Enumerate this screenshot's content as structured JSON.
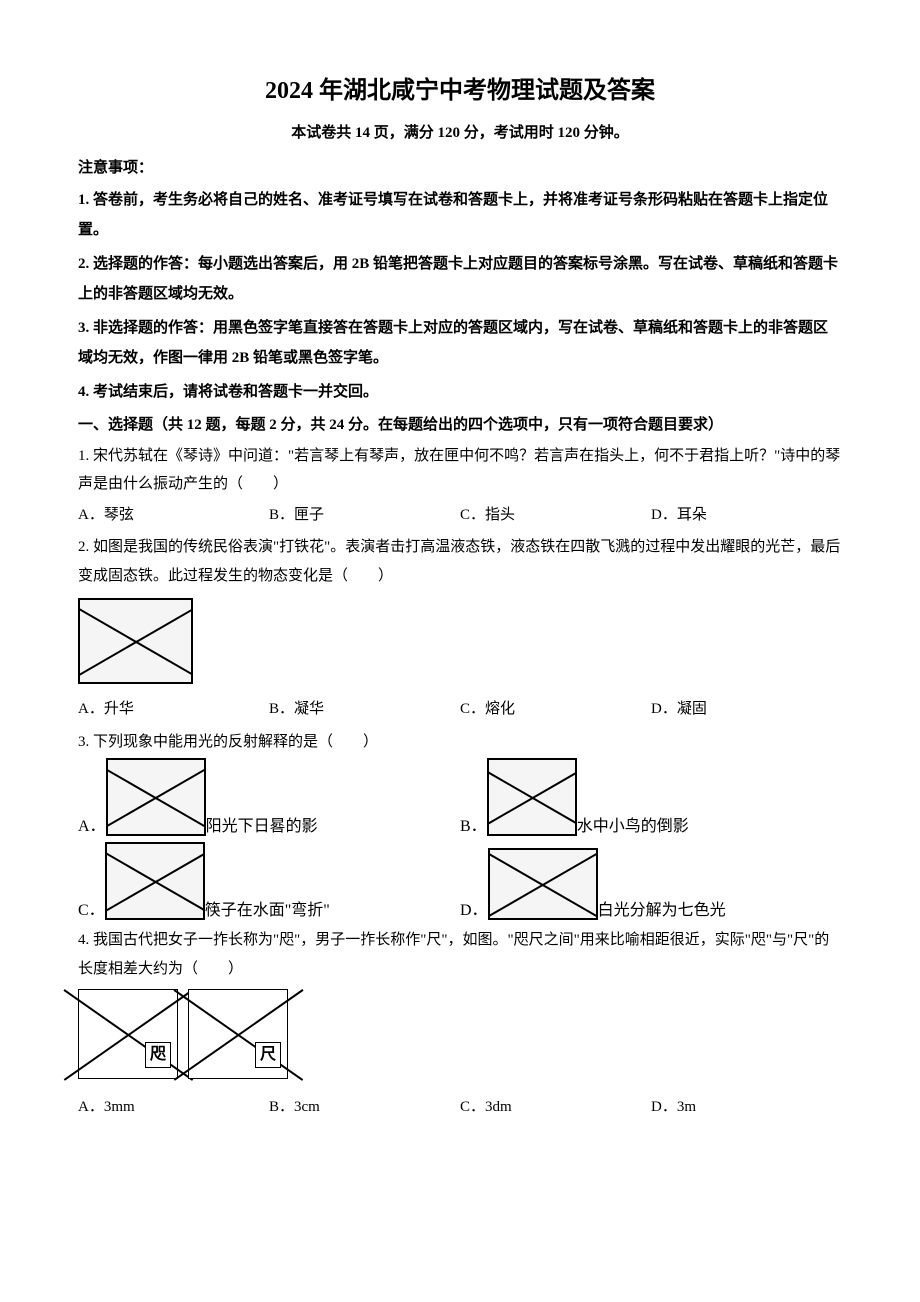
{
  "title": "2024 年湖北咸宁中考物理试题及答案",
  "subtitle": "本试卷共 14 页，满分 120 分，考试用时 120 分钟。",
  "notice_header": "注意事项：",
  "notices": {
    "n1": "1. 答卷前，考生务必将自己的姓名、准考证号填写在试卷和答题卡上，并将准考证号条形码粘贴在答题卡上指定位置。",
    "n2": "2. 选择题的作答：每小题选出答案后，用 2B 铅笔把答题卡上对应题目的答案标号涂黑。写在试卷、草稿纸和答题卡上的非答题区域均无效。",
    "n3": "3. 非选择题的作答：用黑色签字笔直接答在答题卡上对应的答题区域内，写在试卷、草稿纸和答题卡上的非答题区域均无效，作图一律用 2B 铅笔或黑色签字笔。",
    "n4": "4. 考试结束后，请将试卷和答题卡一并交回。"
  },
  "section_header": "一、选择题（共 12 题，每题 2 分，共 24 分。在每题给出的四个选项中，只有一项符合题目要求）",
  "q1": {
    "text": "1. 宋代苏轼在《琴诗》中问道：\"若言琴上有琴声，放在匣中何不鸣？若言声在指头上，何不于君指上听？\"诗中的琴声是由什么振动产生的（　　）",
    "a": "A．琴弦",
    "b": "B．匣子",
    "c": "C．指头",
    "d": "D．耳朵"
  },
  "q2": {
    "text": "2. 如图是我国的传统民俗表演\"打铁花\"。表演者击打高温液态铁，液态铁在四散飞溅的过程中发出耀眼的光芒，最后变成固态铁。此过程发生的物态变化是（　　）",
    "a": "A．升华",
    "b": "B．凝华",
    "c": "C．熔化",
    "d": "D．凝固"
  },
  "q3": {
    "text": "3. 下列现象中能用光的反射解释的是（　　）",
    "a_prefix": "A．",
    "a_label": "阳光下日晷的影",
    "b_prefix": "B．",
    "b_label": "水中小鸟的倒影",
    "c_prefix": "C．",
    "c_label": "筷子在水面\"弯折\"",
    "d_prefix": "D．",
    "d_label": "白光分解为七色光"
  },
  "q4": {
    "text": "4. 我国古代把女子一拃长称为\"咫\"，男子一拃长称作\"尺\"，如图。\"咫尺之间\"用来比喻相距很近，实际\"咫\"与\"尺\"的长度相差大约为（　　）",
    "label1": "咫",
    "label2": "尺",
    "a": "A．3mm",
    "b": "B．3cm",
    "c": "C．3dm",
    "d": "D．3m"
  }
}
